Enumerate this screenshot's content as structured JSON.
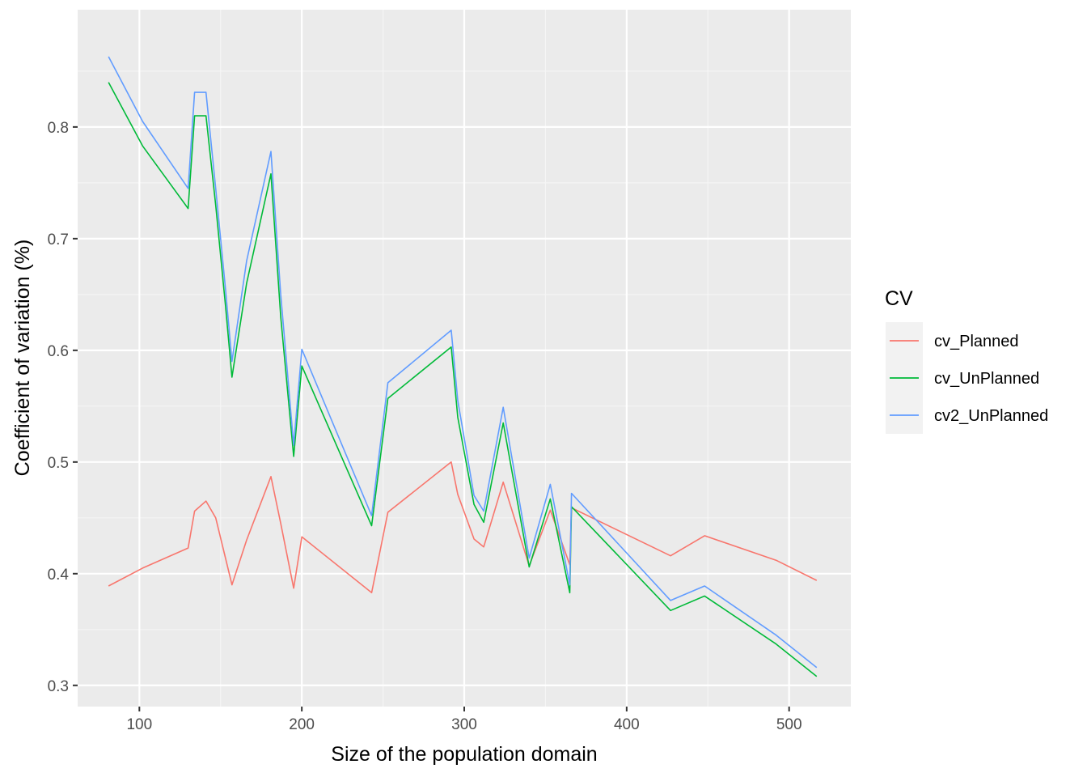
{
  "chart_data": {
    "type": "line",
    "xlabel": "Size of the population domain",
    "ylabel": "Coefficient of variation (%)",
    "xlim": [
      62,
      538
    ],
    "ylim": [
      0.281,
      0.905
    ],
    "xticks": [
      100,
      200,
      300,
      400,
      500
    ],
    "xtick_labels": [
      "100",
      "200",
      "300",
      "400",
      "500"
    ],
    "yticks": [
      0.3,
      0.4,
      0.5,
      0.6,
      0.7,
      0.8
    ],
    "ytick_labels": [
      "0.3",
      "0.4",
      "0.5",
      "0.6",
      "0.7",
      "0.8"
    ],
    "grid": true,
    "legend": {
      "title": "CV",
      "position": "right",
      "entries": [
        "cv_Planned",
        "cv_UnPlanned",
        "cv2_UnPlanned"
      ]
    },
    "x": [
      81,
      102,
      130,
      134,
      141,
      147,
      153,
      157,
      166,
      181,
      187,
      195,
      200,
      243,
      253,
      292,
      296,
      306,
      312,
      324,
      340,
      353,
      365,
      366,
      427,
      448,
      492,
      517
    ],
    "series": [
      {
        "name": "cv_Planned",
        "color": "#F8766D",
        "values": [
          0.389,
          0.405,
          0.423,
          0.456,
          0.465,
          0.45,
          0.414,
          0.39,
          0.43,
          0.487,
          0.445,
          0.387,
          0.433,
          0.383,
          0.455,
          0.5,
          0.471,
          0.431,
          0.424,
          0.482,
          0.407,
          0.457,
          0.408,
          0.459,
          0.416,
          0.434,
          0.412,
          0.394
        ]
      },
      {
        "name": "cv_UnPlanned",
        "color": "#00BA38",
        "values": [
          0.84,
          0.783,
          0.727,
          0.81,
          0.81,
          0.73,
          0.64,
          0.576,
          0.66,
          0.758,
          0.63,
          0.505,
          0.586,
          0.443,
          0.557,
          0.603,
          0.54,
          0.462,
          0.446,
          0.535,
          0.406,
          0.467,
          0.383,
          0.46,
          0.367,
          0.38,
          0.337,
          0.308
        ]
      },
      {
        "name": "cv2_UnPlanned",
        "color": "#619CFF",
        "values": [
          0.863,
          0.805,
          0.745,
          0.831,
          0.831,
          0.745,
          0.655,
          0.59,
          0.68,
          0.778,
          0.65,
          0.515,
          0.601,
          0.452,
          0.571,
          0.618,
          0.555,
          0.47,
          0.456,
          0.549,
          0.414,
          0.48,
          0.39,
          0.472,
          0.376,
          0.389,
          0.345,
          0.316
        ]
      }
    ]
  }
}
